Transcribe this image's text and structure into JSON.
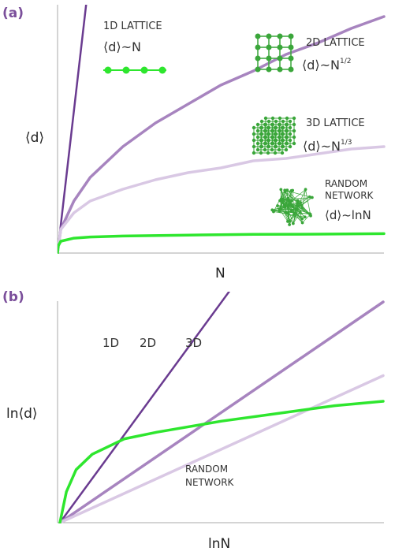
{
  "colors": {
    "panel_label": "#7b4f9b",
    "d1": "#6a3b90",
    "d2": "#a784bf",
    "d3": "#d9c8e4",
    "random": "#2ee62e",
    "lattice": "#3aa63a"
  },
  "icons": [
    "chain-lattice-icon",
    "grid-lattice-icon",
    "cube-lattice-icon",
    "random-network-icon"
  ],
  "chart_data": [
    {
      "type": "line",
      "panel": "(a)",
      "xlabel": "N",
      "ylabel": "⟨d⟩",
      "grid": false,
      "legend": "inline labels",
      "series": [
        {
          "name": "1D LATTICE",
          "formula": "⟨d⟩~N",
          "x": [
            0,
            1
          ],
          "y": [
            0,
            12.0
          ]
        },
        {
          "name": "2D LATTICE",
          "formula": "⟨d⟩~N^1/2",
          "x": [
            0,
            0.01,
            0.05,
            0.1,
            0.2,
            0.3,
            0.4,
            0.5,
            0.6,
            0.7,
            0.8,
            0.9,
            1.0
          ],
          "y": [
            0,
            0.1,
            0.22,
            0.32,
            0.45,
            0.55,
            0.63,
            0.71,
            0.77,
            0.84,
            0.89,
            0.95,
            1.0
          ]
        },
        {
          "name": "3D LATTICE",
          "formula": "⟨d⟩~N^1/3",
          "x": [
            0,
            0.01,
            0.05,
            0.1,
            0.2,
            0.3,
            0.4,
            0.5,
            0.6,
            0.7,
            0.8,
            0.9,
            1.0
          ],
          "y": [
            0,
            0.1,
            0.17,
            0.22,
            0.27,
            0.31,
            0.34,
            0.36,
            0.39,
            0.4,
            0.42,
            0.44,
            0.45
          ]
        },
        {
          "name": "RANDOM NETWORK",
          "formula": "⟨d⟩~lnN",
          "x": [
            0,
            0.002,
            0.01,
            0.05,
            0.1,
            0.2,
            0.4,
            0.6,
            0.8,
            1.0
          ],
          "y": [
            0,
            0.03,
            0.05,
            0.063,
            0.068,
            0.072,
            0.076,
            0.079,
            0.08,
            0.082
          ]
        }
      ],
      "labels": {
        "d1": {
          "name": "1D LATTICE",
          "formula": "⟨d⟩~N"
        },
        "d2": {
          "name": "2D LATTICE",
          "formula": "⟨d⟩~N",
          "exp": "1/2"
        },
        "d3": {
          "name": "3D LATTICE",
          "formula": "⟨d⟩~N",
          "exp": "1/3"
        },
        "rn": {
          "name1": "RANDOM",
          "name2": "NETWORK",
          "formula": "⟨d⟩~lnN"
        }
      }
    },
    {
      "type": "line",
      "panel": "(b)",
      "xlabel": "lnN",
      "ylabel": "ln⟨d⟩",
      "grid": false,
      "legend": "inline labels",
      "series": [
        {
          "name": "1D",
          "x": [
            0,
            1
          ],
          "y": [
            0,
            1
          ]
        },
        {
          "name": "2D",
          "x": [
            0,
            1
          ],
          "y": [
            0,
            0.5
          ]
        },
        {
          "name": "3D",
          "x": [
            0,
            1
          ],
          "y": [
            0,
            0.333
          ]
        },
        {
          "name": "RANDOM NETWORK",
          "x": [
            0,
            0.02,
            0.05,
            0.1,
            0.2,
            0.3,
            0.5,
            0.7,
            0.85,
            1.0
          ],
          "y": [
            0,
            0.07,
            0.12,
            0.155,
            0.19,
            0.205,
            0.23,
            0.25,
            0.265,
            0.275
          ]
        }
      ],
      "labels": {
        "d1": "1D",
        "d2": "2D",
        "d3": "3D",
        "rn1": "RANDOM",
        "rn2": "NETWORK"
      }
    }
  ]
}
